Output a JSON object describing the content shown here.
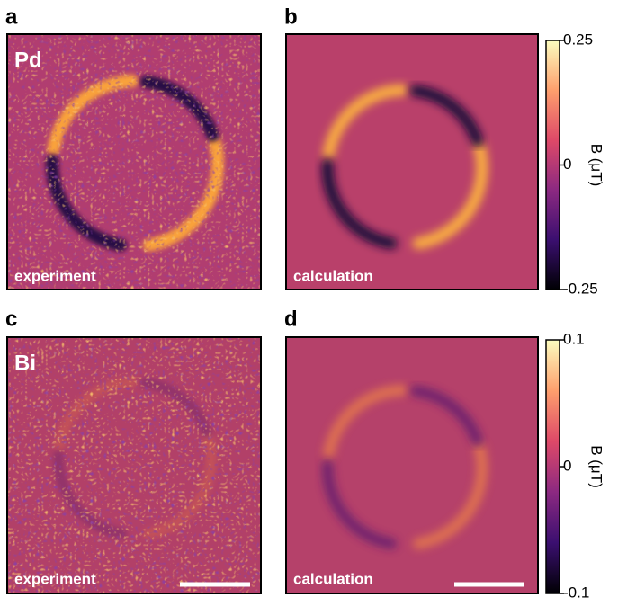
{
  "panels": [
    {
      "letter": "a",
      "tag": "Pd",
      "caption": "experiment"
    },
    {
      "letter": "b",
      "caption": "calculation"
    },
    {
      "letter": "c",
      "tag": "Bi",
      "caption": "experiment"
    },
    {
      "letter": "d",
      "caption": "calculation"
    }
  ],
  "colorbars": [
    {
      "label": "B (μT)",
      "lim": [
        -0.25,
        0.25
      ],
      "ticks": [
        0.25,
        0,
        -0.25
      ]
    },
    {
      "label": "B (μT)",
      "lim": [
        -0.1,
        0.1
      ],
      "ticks": [
        0.1,
        0,
        -0.1
      ]
    }
  ]
}
